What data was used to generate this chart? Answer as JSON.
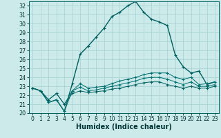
{
  "xlabel": "Humidex (Indice chaleur)",
  "ylabel": "",
  "xlim": [
    -0.5,
    23.5
  ],
  "ylim": [
    20,
    32.5
  ],
  "yticks": [
    20,
    21,
    22,
    23,
    24,
    25,
    26,
    27,
    28,
    29,
    30,
    31,
    32
  ],
  "xticks": [
    0,
    1,
    2,
    3,
    4,
    5,
    6,
    7,
    8,
    9,
    10,
    11,
    12,
    13,
    14,
    15,
    16,
    17,
    18,
    19,
    20,
    21,
    22,
    23
  ],
  "bg_color": "#cceaea",
  "grid_color": "#aad4d4",
  "line_color_dark": "#005f5f",
  "line_color_mid": "#007070",
  "curves": [
    [
      22.8,
      22.5,
      21.2,
      21.5,
      20.2,
      23.3,
      26.6,
      27.5,
      28.5,
      29.5,
      30.8,
      31.3,
      32.0,
      32.5,
      31.3,
      30.5,
      30.2,
      29.8,
      26.5,
      25.2,
      24.5,
      24.7,
      23.2,
      23.5
    ],
    [
      22.8,
      22.5,
      21.2,
      21.5,
      20.2,
      22.5,
      23.3,
      22.8,
      22.9,
      23.0,
      23.3,
      23.6,
      23.8,
      24.0,
      24.3,
      24.5,
      24.5,
      24.5,
      24.0,
      23.8,
      24.0,
      23.2,
      23.3,
      23.5
    ],
    [
      22.8,
      22.5,
      21.5,
      22.2,
      21.0,
      22.5,
      22.9,
      22.5,
      22.6,
      22.8,
      23.0,
      23.2,
      23.4,
      23.6,
      23.9,
      24.0,
      24.0,
      23.8,
      23.5,
      23.2,
      23.5,
      23.0,
      23.0,
      23.2
    ],
    [
      22.8,
      22.5,
      21.5,
      22.2,
      21.0,
      22.2,
      22.5,
      22.3,
      22.4,
      22.5,
      22.7,
      22.8,
      23.0,
      23.2,
      23.4,
      23.5,
      23.5,
      23.2,
      23.0,
      22.8,
      23.0,
      22.8,
      22.8,
      23.0
    ]
  ],
  "xlabel_fontsize": 7,
  "tick_fontsize": 5.5
}
